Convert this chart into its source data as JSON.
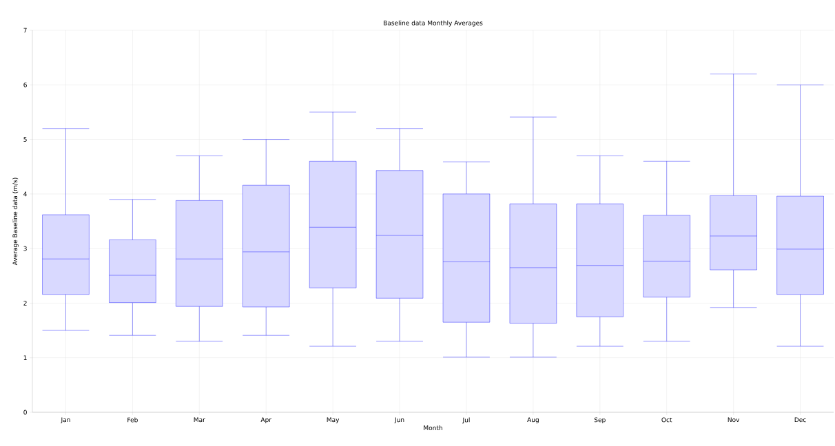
{
  "chart_data": {
    "type": "box",
    "title": "Baseline data Monthly Averages",
    "xlabel": "Month",
    "ylabel": "Average Baseline data (m/s)",
    "categories": [
      "Jan",
      "Feb",
      "Mar",
      "Apr",
      "May",
      "Jun",
      "Jul",
      "Aug",
      "Sep",
      "Oct",
      "Nov",
      "Dec"
    ],
    "color": "#0000ff",
    "grid": true,
    "ylim": [
      0,
      7
    ],
    "yticks": [
      0,
      1,
      2,
      3,
      4,
      5,
      6,
      7
    ],
    "boxes": [
      {
        "low": 1.5,
        "q1": 2.16,
        "median": 2.81,
        "q3": 3.62,
        "high": 5.2
      },
      {
        "low": 1.41,
        "q1": 2.01,
        "median": 2.51,
        "q3": 3.16,
        "high": 3.9
      },
      {
        "low": 1.3,
        "q1": 1.94,
        "median": 2.81,
        "q3": 3.88,
        "high": 4.7
      },
      {
        "low": 1.41,
        "q1": 1.93,
        "median": 2.94,
        "q3": 4.16,
        "high": 5.0
      },
      {
        "low": 1.21,
        "q1": 2.28,
        "median": 3.39,
        "q3": 4.6,
        "high": 5.5
      },
      {
        "low": 1.3,
        "q1": 2.09,
        "median": 3.24,
        "q3": 4.43,
        "high": 5.2
      },
      {
        "low": 1.01,
        "q1": 1.65,
        "median": 2.76,
        "q3": 4.0,
        "high": 4.59
      },
      {
        "low": 1.01,
        "q1": 1.63,
        "median": 2.65,
        "q3": 3.82,
        "high": 5.41
      },
      {
        "low": 1.21,
        "q1": 1.75,
        "median": 2.69,
        "q3": 3.82,
        "high": 4.7
      },
      {
        "low": 1.3,
        "q1": 2.11,
        "median": 2.77,
        "q3": 3.61,
        "high": 4.6
      },
      {
        "low": 1.92,
        "q1": 2.61,
        "median": 3.23,
        "q3": 3.97,
        "high": 6.2
      },
      {
        "low": 1.21,
        "q1": 2.16,
        "median": 2.99,
        "q3": 3.96,
        "high": 6.0
      }
    ]
  }
}
